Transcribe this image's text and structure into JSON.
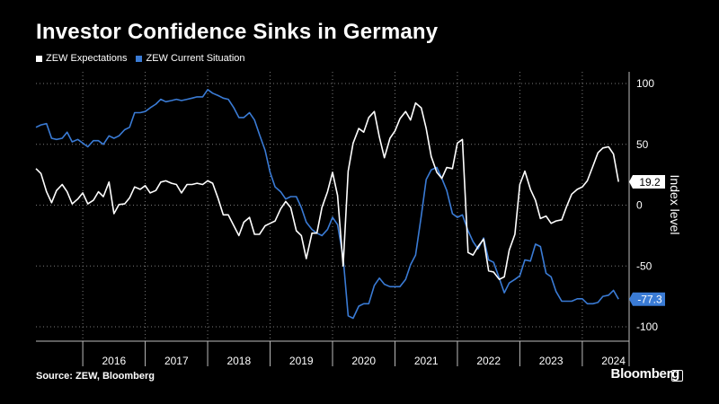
{
  "title": "Investor Confidence Sinks in Germany",
  "source": "Source: ZEW, Bloomberg",
  "brand": "Bloomberg",
  "colors": {
    "expectations": "#ffffff",
    "current": "#3a7bd5",
    "grid": "#7a7a7a",
    "background": "#000000"
  },
  "chart_data": {
    "type": "line",
    "ylabel": "Index level",
    "ylim": [
      -110,
      100
    ],
    "yticks": [
      100,
      50,
      0,
      -50,
      -100
    ],
    "xlim": [
      2015.25,
      2024.75
    ],
    "year_labels": [
      "2016",
      "2017",
      "2018",
      "2019",
      "2020",
      "2021",
      "2022",
      "2023",
      "2024"
    ],
    "series": [
      {
        "name": "ZEW Expectations",
        "last_label": "19.2",
        "points": [
          [
            2015.25,
            30
          ],
          [
            2015.33,
            26
          ],
          [
            2015.42,
            11
          ],
          [
            2015.5,
            2
          ],
          [
            2015.58,
            12
          ],
          [
            2015.67,
            17
          ],
          [
            2015.75,
            11
          ],
          [
            2015.83,
            1
          ],
          [
            2015.92,
            5
          ],
          [
            2016.0,
            10
          ],
          [
            2016.08,
            1
          ],
          [
            2016.17,
            4
          ],
          [
            2016.25,
            11
          ],
          [
            2016.33,
            7
          ],
          [
            2016.42,
            19
          ],
          [
            2016.5,
            -7
          ],
          [
            2016.58,
            0.5
          ],
          [
            2016.67,
            1
          ],
          [
            2016.75,
            6
          ],
          [
            2016.83,
            15
          ],
          [
            2016.92,
            13
          ],
          [
            2017.0,
            16
          ],
          [
            2017.08,
            10
          ],
          [
            2017.17,
            12
          ],
          [
            2017.25,
            19
          ],
          [
            2017.33,
            20
          ],
          [
            2017.42,
            18
          ],
          [
            2017.5,
            17
          ],
          [
            2017.58,
            10
          ],
          [
            2017.67,
            17
          ],
          [
            2017.75,
            17
          ],
          [
            2017.83,
            18
          ],
          [
            2017.92,
            17
          ],
          [
            2018.0,
            20
          ],
          [
            2018.08,
            18
          ],
          [
            2018.17,
            5
          ],
          [
            2018.25,
            -8
          ],
          [
            2018.33,
            -8
          ],
          [
            2018.42,
            -17
          ],
          [
            2018.5,
            -25
          ],
          [
            2018.58,
            -14
          ],
          [
            2018.67,
            -10
          ],
          [
            2018.75,
            -24
          ],
          [
            2018.83,
            -24
          ],
          [
            2018.92,
            -17
          ],
          [
            2019.0,
            -15
          ],
          [
            2019.08,
            -13
          ],
          [
            2019.17,
            -3
          ],
          [
            2019.25,
            3
          ],
          [
            2019.33,
            -2
          ],
          [
            2019.42,
            -21
          ],
          [
            2019.5,
            -25
          ],
          [
            2019.58,
            -44
          ],
          [
            2019.67,
            -23
          ],
          [
            2019.75,
            -23
          ],
          [
            2019.83,
            -2
          ],
          [
            2019.92,
            11
          ],
          [
            2020.0,
            27
          ],
          [
            2020.08,
            8
          ],
          [
            2020.17,
            -50
          ],
          [
            2020.25,
            28
          ],
          [
            2020.33,
            51
          ],
          [
            2020.42,
            63
          ],
          [
            2020.5,
            60
          ],
          [
            2020.58,
            72
          ],
          [
            2020.67,
            77
          ],
          [
            2020.75,
            56
          ],
          [
            2020.83,
            39
          ],
          [
            2020.92,
            55
          ],
          [
            2021.0,
            61
          ],
          [
            2021.08,
            71
          ],
          [
            2021.17,
            77
          ],
          [
            2021.25,
            70
          ],
          [
            2021.33,
            84
          ],
          [
            2021.42,
            80
          ],
          [
            2021.5,
            63
          ],
          [
            2021.58,
            40
          ],
          [
            2021.67,
            27
          ],
          [
            2021.75,
            22
          ],
          [
            2021.83,
            31
          ],
          [
            2021.92,
            30
          ],
          [
            2022.0,
            51
          ],
          [
            2022.08,
            54
          ],
          [
            2022.17,
            -39
          ],
          [
            2022.25,
            -41
          ],
          [
            2022.33,
            -34
          ],
          [
            2022.42,
            -28
          ],
          [
            2022.5,
            -54
          ],
          [
            2022.58,
            -55
          ],
          [
            2022.67,
            -61
          ],
          [
            2022.75,
            -59
          ],
          [
            2022.83,
            -37
          ],
          [
            2022.92,
            -24
          ],
          [
            2023.0,
            17
          ],
          [
            2023.08,
            28
          ],
          [
            2023.17,
            13
          ],
          [
            2023.25,
            4
          ],
          [
            2023.33,
            -11
          ],
          [
            2023.42,
            -9
          ],
          [
            2023.5,
            -15
          ],
          [
            2023.58,
            -13
          ],
          [
            2023.67,
            -12
          ],
          [
            2023.75,
            -1
          ],
          [
            2023.83,
            9
          ],
          [
            2023.92,
            13
          ],
          [
            2024.0,
            15
          ],
          [
            2024.08,
            20
          ],
          [
            2024.17,
            32
          ],
          [
            2024.25,
            43
          ],
          [
            2024.33,
            47
          ],
          [
            2024.42,
            48
          ],
          [
            2024.5,
            42
          ],
          [
            2024.58,
            19.2
          ]
        ]
      },
      {
        "name": "ZEW Current Situation",
        "last_label": "-77.3",
        "points": [
          [
            2015.25,
            64
          ],
          [
            2015.33,
            66
          ],
          [
            2015.42,
            67
          ],
          [
            2015.5,
            55
          ],
          [
            2015.58,
            54
          ],
          [
            2015.67,
            55
          ],
          [
            2015.75,
            60
          ],
          [
            2015.83,
            52
          ],
          [
            2015.92,
            54
          ],
          [
            2016.0,
            51
          ],
          [
            2016.08,
            48
          ],
          [
            2016.17,
            53
          ],
          [
            2016.25,
            53
          ],
          [
            2016.33,
            50
          ],
          [
            2016.42,
            57
          ],
          [
            2016.5,
            55
          ],
          [
            2016.58,
            57
          ],
          [
            2016.67,
            62
          ],
          [
            2016.75,
            64
          ],
          [
            2016.83,
            76
          ],
          [
            2016.92,
            76
          ],
          [
            2017.0,
            77
          ],
          [
            2017.08,
            80
          ],
          [
            2017.17,
            83
          ],
          [
            2017.25,
            87
          ],
          [
            2017.33,
            85
          ],
          [
            2017.42,
            86
          ],
          [
            2017.5,
            87
          ],
          [
            2017.58,
            86
          ],
          [
            2017.67,
            87
          ],
          [
            2017.75,
            88
          ],
          [
            2017.83,
            89
          ],
          [
            2017.92,
            89
          ],
          [
            2018.0,
            95
          ],
          [
            2018.08,
            92
          ],
          [
            2018.17,
            90
          ],
          [
            2018.25,
            88
          ],
          [
            2018.33,
            87
          ],
          [
            2018.42,
            80
          ],
          [
            2018.5,
            72
          ],
          [
            2018.58,
            72
          ],
          [
            2018.67,
            76
          ],
          [
            2018.75,
            70
          ],
          [
            2018.83,
            58
          ],
          [
            2018.92,
            45
          ],
          [
            2019.0,
            27
          ],
          [
            2019.08,
            15
          ],
          [
            2019.17,
            11
          ],
          [
            2019.25,
            5
          ],
          [
            2019.33,
            7
          ],
          [
            2019.42,
            7
          ],
          [
            2019.5,
            -2
          ],
          [
            2019.58,
            -14
          ],
          [
            2019.67,
            -20
          ],
          [
            2019.75,
            -23
          ],
          [
            2019.83,
            -25
          ],
          [
            2019.92,
            -20
          ],
          [
            2020.0,
            -10
          ],
          [
            2020.08,
            -16
          ],
          [
            2020.17,
            -43
          ],
          [
            2020.25,
            -91
          ],
          [
            2020.33,
            -93
          ],
          [
            2020.42,
            -83
          ],
          [
            2020.5,
            -81
          ],
          [
            2020.58,
            -81
          ],
          [
            2020.67,
            -66
          ],
          [
            2020.75,
            -60
          ],
          [
            2020.83,
            -65
          ],
          [
            2020.92,
            -67
          ],
          [
            2021.0,
            -67
          ],
          [
            2021.08,
            -67
          ],
          [
            2021.17,
            -61
          ],
          [
            2021.25,
            -49
          ],
          [
            2021.33,
            -41
          ],
          [
            2021.42,
            -9
          ],
          [
            2021.5,
            21
          ],
          [
            2021.58,
            29
          ],
          [
            2021.67,
            31
          ],
          [
            2021.75,
            22
          ],
          [
            2021.83,
            12
          ],
          [
            2021.92,
            -7
          ],
          [
            2022.0,
            -10
          ],
          [
            2022.08,
            -8
          ],
          [
            2022.17,
            -21
          ],
          [
            2022.25,
            -30
          ],
          [
            2022.33,
            -36
          ],
          [
            2022.42,
            -27
          ],
          [
            2022.5,
            -45
          ],
          [
            2022.58,
            -47
          ],
          [
            2022.67,
            -60
          ],
          [
            2022.75,
            -72
          ],
          [
            2022.83,
            -64
          ],
          [
            2022.92,
            -61
          ],
          [
            2023.0,
            -58
          ],
          [
            2023.08,
            -45
          ],
          [
            2023.17,
            -46
          ],
          [
            2023.25,
            -32
          ],
          [
            2023.33,
            -34
          ],
          [
            2023.42,
            -56
          ],
          [
            2023.5,
            -59
          ],
          [
            2023.58,
            -71
          ],
          [
            2023.67,
            -79
          ],
          [
            2023.75,
            -79
          ],
          [
            2023.83,
            -79
          ],
          [
            2023.92,
            -77
          ],
          [
            2024.0,
            -77
          ],
          [
            2024.08,
            -81
          ],
          [
            2024.17,
            -81
          ],
          [
            2024.25,
            -80
          ],
          [
            2024.33,
            -75
          ],
          [
            2024.42,
            -74
          ],
          [
            2024.5,
            -70
          ],
          [
            2024.58,
            -77.3
          ]
        ]
      }
    ]
  }
}
